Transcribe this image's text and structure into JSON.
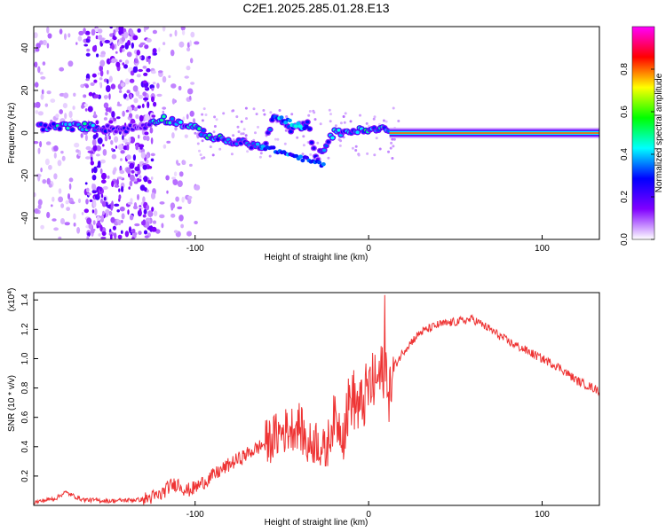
{
  "title": "C2E1.2025.285.01.28.E13",
  "chart_data": [
    {
      "type": "heatmap",
      "xlabel": "Height of straight line (km)",
      "ylabel": "Frequency (Hz)",
      "xlim": [
        -193,
        133
      ],
      "ylim": [
        -50,
        50
      ],
      "xticks": [
        -100,
        0,
        100
      ],
      "xtick_labels": [
        "-100",
        "0",
        "100"
      ],
      "yticks": [
        -40,
        -20,
        0,
        20,
        40
      ],
      "ytick_labels": [
        "-40",
        "-20",
        "0",
        "20",
        "40"
      ],
      "colorbar": {
        "label": "Normalized spectral amplitude",
        "range": [
          0,
          1
        ],
        "ticks": [
          0.0,
          0.2,
          0.4,
          0.6,
          0.8
        ],
        "tick_labels": [
          "0.0",
          "0.2",
          "0.4",
          "0.6",
          "0.8"
        ],
        "colors": [
          "#ffffff",
          "#8000ff",
          "#0000ff",
          "#00ffff",
          "#00ff00",
          "#ffff00",
          "#ff0000",
          "#ff00ff"
        ]
      },
      "ridge": [
        {
          "x": -190,
          "f": 3,
          "amp": 0.35
        },
        {
          "x": -180,
          "f": 3,
          "amp": 0.45
        },
        {
          "x": -170,
          "f": 3,
          "amp": 0.5
        },
        {
          "x": -160,
          "f": 3,
          "amp": 0.45
        },
        {
          "x": -150,
          "f": 2,
          "amp": 0.25
        },
        {
          "x": -140,
          "f": 2,
          "amp": 0.25
        },
        {
          "x": -130,
          "f": 3,
          "amp": 0.2
        },
        {
          "x": -120,
          "f": 7,
          "amp": 0.55
        },
        {
          "x": -110,
          "f": 5,
          "amp": 0.4
        },
        {
          "x": -100,
          "f": 2,
          "amp": 0.45
        },
        {
          "x": -90,
          "f": -2,
          "amp": 0.5
        },
        {
          "x": -80,
          "f": -4,
          "amp": 0.45
        },
        {
          "x": -70,
          "f": -5,
          "amp": 0.4
        },
        {
          "x": -60,
          "f": -7,
          "amp": 0.35
        },
        {
          "x": -55,
          "f": 8,
          "amp": 0.35
        },
        {
          "x": -50,
          "f": 5,
          "amp": 0.3
        },
        {
          "x": -45,
          "f": 2,
          "amp": 0.3
        },
        {
          "x": -35,
          "f": 4,
          "amp": 0.3
        },
        {
          "x": -30,
          "f": -12,
          "amp": 0.25
        },
        {
          "x": -20,
          "f": 0,
          "amp": 0.45
        },
        {
          "x": -10,
          "f": 1,
          "amp": 0.45
        },
        {
          "x": 0,
          "f": 1,
          "amp": 0.5
        },
        {
          "x": 10,
          "f": 2,
          "amp": 0.5
        },
        {
          "x": 20,
          "f": 0,
          "amp": 0.8
        },
        {
          "x": 60,
          "f": 0,
          "amp": 0.8
        },
        {
          "x": 100,
          "f": 0,
          "amp": 0.8
        },
        {
          "x": 133,
          "f": 0,
          "amp": 0.8
        }
      ]
    },
    {
      "type": "line",
      "xlabel": "Height of straight line (km)",
      "ylabel": "SNR (10 * v/v)",
      "y_multiplier_label": "(x10",
      "y_multiplier_exponent": "4",
      "y_multiplier_close": ")",
      "xlim": [
        -193,
        133
      ],
      "ylim": [
        0,
        1.45
      ],
      "xticks": [
        -100,
        0,
        100
      ],
      "xtick_labels": [
        "-100",
        "0",
        "100"
      ],
      "yticks": [
        0.2,
        0.4,
        0.6,
        0.8,
        1.0,
        1.2,
        1.4
      ],
      "ytick_labels": [
        "0.2",
        "0.4",
        "0.6",
        "0.8",
        "1.0",
        "1.2",
        "1.4"
      ],
      "series": [
        {
          "name": "SNR",
          "color": "#ee3333",
          "x": [
            -193,
            -180,
            -175,
            -165,
            -150,
            -130,
            -120,
            -115,
            -110,
            -105,
            -100,
            -90,
            -80,
            -70,
            -60,
            -50,
            -40,
            -35,
            -30,
            -25,
            -20,
            -15,
            -10,
            -5,
            0,
            5,
            8,
            10,
            12,
            15,
            20,
            25,
            30,
            40,
            50,
            60,
            70,
            80,
            90,
            100,
            110,
            120,
            133
          ],
          "y": [
            0.02,
            0.05,
            0.09,
            0.04,
            0.03,
            0.04,
            0.07,
            0.13,
            0.15,
            0.1,
            0.12,
            0.2,
            0.28,
            0.35,
            0.42,
            0.5,
            0.55,
            0.4,
            0.45,
            0.35,
            0.6,
            0.5,
            0.75,
            0.65,
            0.8,
            0.85,
            0.9,
            1.0,
            0.75,
            0.95,
            1.05,
            1.12,
            1.18,
            1.23,
            1.25,
            1.27,
            1.2,
            1.12,
            1.06,
            1.0,
            0.94,
            0.85,
            0.78
          ]
        }
      ]
    }
  ]
}
